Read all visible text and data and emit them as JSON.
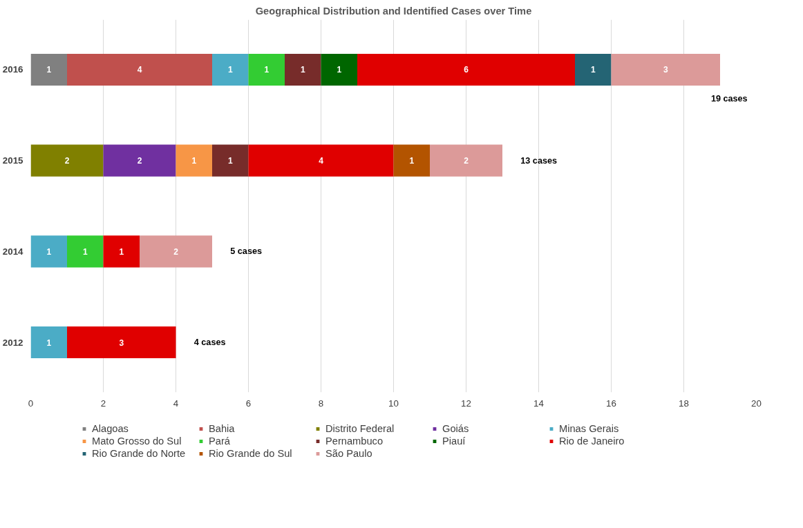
{
  "chart_data": {
    "type": "bar",
    "orientation": "horizontal",
    "stacked": true,
    "title": "Geographical Distribution and Identified Cases over Time",
    "categories": [
      "2016",
      "2015",
      "2014",
      "2012"
    ],
    "series": [
      {
        "name": "Alagoas",
        "color": "#808080",
        "values": [
          1,
          null,
          null,
          null
        ]
      },
      {
        "name": "Bahia",
        "color": "#c0504d",
        "values": [
          4,
          null,
          null,
          null
        ]
      },
      {
        "name": "Distrito Federal",
        "color": "#808000",
        "values": [
          null,
          2,
          null,
          null
        ]
      },
      {
        "name": "Goiás",
        "color": "#7030a0",
        "values": [
          null,
          2,
          null,
          null
        ]
      },
      {
        "name": "Minas Gerais",
        "color": "#4bacc6",
        "values": [
          1,
          null,
          1,
          1
        ]
      },
      {
        "name": "Mato Grosso do Sul",
        "color": "#f79646",
        "values": [
          null,
          1,
          null,
          null
        ]
      },
      {
        "name": "Pará",
        "color": "#33cc33",
        "values": [
          1,
          null,
          1,
          null
        ]
      },
      {
        "name": "Pernambuco",
        "color": "#772c2a",
        "values": [
          1,
          1,
          null,
          null
        ]
      },
      {
        "name": "Piauí",
        "color": "#006600",
        "values": [
          1,
          null,
          null,
          null
        ]
      },
      {
        "name": "Rio de Janeiro",
        "color": "#e00000",
        "values": [
          6,
          4,
          1,
          3
        ]
      },
      {
        "name": "Rio Grande do Norte",
        "color": "#246474",
        "values": [
          1,
          null,
          null,
          null
        ]
      },
      {
        "name": "Rio Grande do Sul",
        "color": "#b35400",
        "values": [
          null,
          1,
          null,
          null
        ]
      },
      {
        "name": "São Paulo",
        "color": "#dc9a99",
        "values": [
          3,
          2,
          2,
          null
        ]
      }
    ],
    "totals": [
      "19 cases",
      "13 cases",
      "5 cases",
      "4 cases"
    ],
    "data_labels": true,
    "xlim": [
      0,
      20
    ],
    "xticks": [
      0,
      2,
      4,
      6,
      8,
      10,
      12,
      14,
      16,
      18,
      20
    ],
    "grid": "x",
    "legend": "bottom"
  }
}
